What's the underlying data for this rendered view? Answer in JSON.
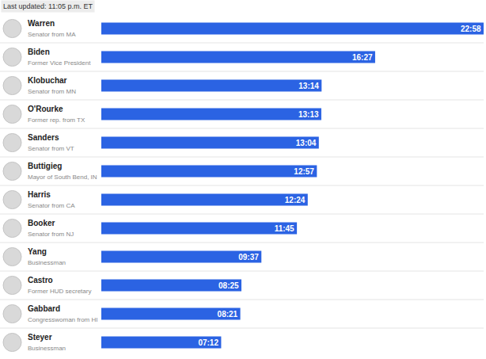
{
  "chart_data": {
    "type": "bar",
    "orientation": "horizontal",
    "annotation": "Last updated: 11:05 p.m. ET",
    "categories": [
      "Warren",
      "Biden",
      "Klobuchar",
      "O'Rourke",
      "Sanders",
      "Buttigieg",
      "Harris",
      "Booker",
      "Yang",
      "Castro",
      "Gabbard",
      "Steyer"
    ],
    "subtitles": [
      "Senator from MA",
      "Former Vice President",
      "Senator from MN",
      "Former rep. from TX",
      "Senator from VT",
      "Mayor of South Bend, IN",
      "Senator from CA",
      "Senator from NJ",
      "Businessman",
      "Former HUD secretary",
      "Congresswoman from HI",
      "Businessman"
    ],
    "values": [
      1378,
      987,
      794,
      793,
      784,
      777,
      744,
      705,
      577,
      505,
      501,
      432
    ],
    "value_labels": [
      "22:58",
      "16:27",
      "13:14",
      "13:13",
      "13:04",
      "12:57",
      "12:24",
      "11:45",
      "09:37",
      "08:25",
      "08:21",
      "07:12"
    ],
    "color": "#2b63e3",
    "xlim": [
      0,
      1378
    ],
    "xticks": [],
    "grid": false,
    "data_labels": true,
    "tick_labels": "y"
  }
}
